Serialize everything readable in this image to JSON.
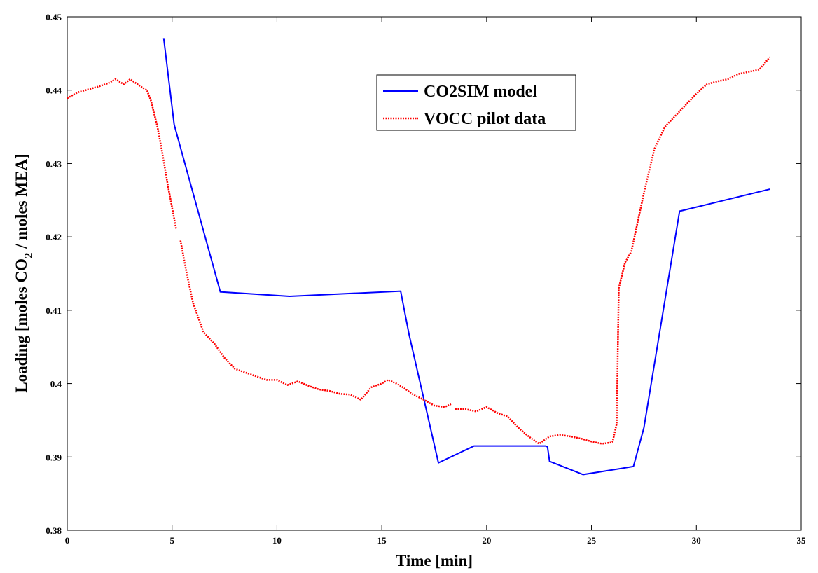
{
  "chart_data": {
    "type": "line",
    "xlabel": "Time [min]",
    "ylabel_parts": [
      "Loading [moles CO",
      "2",
      " / moles MEA]"
    ],
    "xlim": [
      0,
      35
    ],
    "xticks": [
      0,
      5,
      10,
      15,
      20,
      25,
      30,
      35
    ],
    "ylim": [
      0.38,
      0.45
    ],
    "yticks": [
      0.38,
      0.39,
      0.4,
      0.41,
      0.42,
      0.43,
      0.44,
      0.45
    ],
    "grid": false,
    "legend": "upper center",
    "series": [
      {
        "name": "CO2SIM model",
        "color": "#0000ff",
        "style": "solid",
        "x": [
          4.6,
          5.1,
          7.3,
          10.6,
          15.9,
          16.3,
          17.7,
          19.4,
          22.8,
          22.9,
          23.0,
          24.6,
          27.0,
          27.5,
          29.2,
          33.5
        ],
        "values": [
          0.4471,
          0.4353,
          0.4125,
          0.4119,
          0.4126,
          0.4067,
          0.3892,
          0.3915,
          0.3915,
          0.3914,
          0.3894,
          0.3876,
          0.3887,
          0.394,
          0.4235,
          0.4265
        ]
      },
      {
        "name": "VOCC pilot data",
        "color": "#ff0000",
        "style": "dotted",
        "x": [
          0,
          0.5,
          1,
          1.5,
          2,
          2.3,
          2.7,
          3,
          3.5,
          3.8,
          4.0,
          4.3,
          4.5,
          4.8,
          5.0,
          5.2,
          5.3,
          5.4,
          5.7,
          6.0,
          6.5,
          7.0,
          7.5,
          8,
          8.5,
          9,
          9.5,
          10,
          10.5,
          11,
          11.5,
          12,
          12.5,
          13,
          13.5,
          14,
          14.5,
          15,
          15.3,
          15.7,
          16,
          16.5,
          17,
          17.5,
          18,
          18.3,
          18.4,
          18.5,
          19,
          19.5,
          20,
          20.5,
          21,
          21.5,
          22,
          22.5,
          23,
          23.5,
          24,
          24.5,
          25,
          25.5,
          26,
          26.2,
          26.3,
          26.6,
          26.9,
          27.2,
          27.5,
          28,
          28.5,
          29,
          29.5,
          30,
          30.5,
          31,
          31.5,
          32,
          32.5,
          33,
          33.5
        ],
        "values": [
          0.4389,
          0.4397,
          0.4401,
          0.4405,
          0.441,
          0.4415,
          0.4408,
          0.4415,
          0.4405,
          0.44,
          0.4385,
          0.435,
          0.432,
          0.427,
          0.424,
          0.421,
          null,
          0.4195,
          0.415,
          0.411,
          0.407,
          0.4055,
          0.4035,
          0.402,
          0.4015,
          0.401,
          0.4005,
          0.4005,
          0.3998,
          0.4003,
          0.3997,
          0.3992,
          0.399,
          0.3986,
          0.3985,
          0.3978,
          0.3995,
          0.4,
          0.4005,
          0.4,
          0.3995,
          0.3985,
          0.3978,
          0.397,
          0.3968,
          0.3972,
          null,
          0.3965,
          0.3965,
          0.3962,
          0.3968,
          0.396,
          0.3955,
          0.394,
          0.3928,
          0.3918,
          0.3928,
          0.393,
          0.3928,
          0.3925,
          0.3921,
          0.3918,
          0.392,
          0.3945,
          0.413,
          0.4165,
          0.418,
          0.422,
          0.426,
          0.432,
          0.435,
          0.4365,
          0.438,
          0.4395,
          0.4408,
          0.4412,
          0.4415,
          0.4422,
          0.4425,
          0.4428,
          0.4445
        ]
      }
    ]
  }
}
